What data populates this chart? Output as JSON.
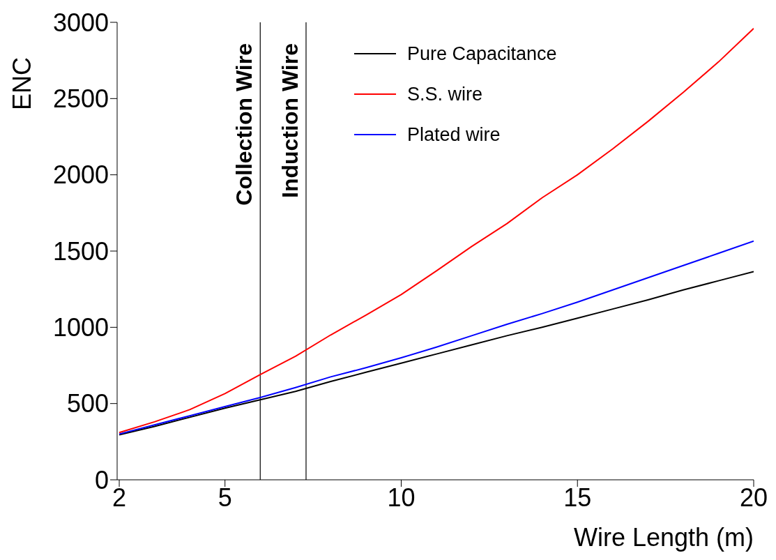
{
  "chart_data": {
    "type": "line",
    "xlabel": "Wire Length (m)",
    "ylabel": "ENC",
    "xlim": [
      1.94,
      20
    ],
    "xticks": [
      2,
      5,
      10,
      15,
      20
    ],
    "ylim": [
      0,
      3000
    ],
    "yticks": [
      0,
      500,
      1000,
      1500,
      2000,
      2500,
      3000
    ],
    "x": [
      2,
      3,
      4,
      5,
      6,
      7,
      8,
      9,
      10,
      11,
      12,
      13,
      14,
      15,
      16,
      17,
      18,
      19,
      20
    ],
    "series": [
      {
        "name": "Pure Capacitance",
        "color": "#000000",
        "values": [
          295,
          350,
          410,
          470,
          525,
          580,
          645,
          705,
          765,
          825,
          885,
          945,
          1000,
          1060,
          1120,
          1180,
          1245,
          1305,
          1365
        ]
      },
      {
        "name": "S.S. wire",
        "color": "#ff0000",
        "values": [
          310,
          380,
          460,
          565,
          690,
          810,
          950,
          1080,
          1215,
          1370,
          1530,
          1680,
          1850,
          2000,
          2170,
          2350,
          2540,
          2740,
          2960
        ]
      },
      {
        "name": "Plated wire",
        "color": "#0000ff",
        "values": [
          300,
          360,
          420,
          480,
          540,
          605,
          675,
          735,
          800,
          870,
          945,
          1020,
          1090,
          1165,
          1245,
          1325,
          1405,
          1485,
          1565
        ]
      }
    ],
    "ref_lines": [
      {
        "axis": "x",
        "value": 6,
        "label": "Collection  Wire",
        "color": "#000000"
      },
      {
        "axis": "x",
        "value": 7.3,
        "label": "Induction  Wire",
        "color": "#000000"
      }
    ],
    "grid": false,
    "legend": "top right",
    "marker": "none",
    "line_style": "solid"
  }
}
